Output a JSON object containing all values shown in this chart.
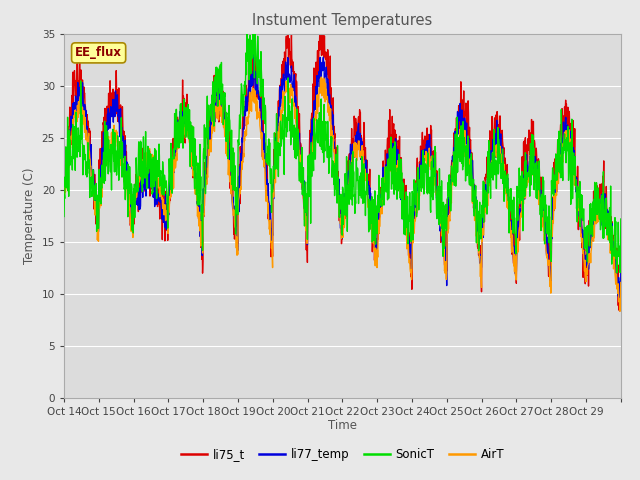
{
  "title": "Instument Temperatures",
  "ylabel": "Temperature (C)",
  "xlabel": "Time",
  "annotation_label": "EE_flux",
  "xtick_labels": [
    "Oct 14",
    "Oct 15",
    "Oct 16",
    "Oct 17",
    "Oct 18",
    "Oct 19",
    "Oct 20",
    "Oct 21",
    "Oct 22",
    "Oct 23",
    "Oct 24",
    "Oct 25",
    "Oct 26",
    "Oct 27",
    "Oct 28",
    "Oct 29"
  ],
  "ylim": [
    0,
    35
  ],
  "yticks": [
    0,
    5,
    10,
    15,
    20,
    25,
    30,
    35
  ],
  "colors": {
    "li75_t": "#dd0000",
    "li77_temp": "#0000dd",
    "SonicT": "#00dd00",
    "AirT": "#ff9900"
  },
  "background_color": "#e8e8e8",
  "plot_bg_color": "#dcdcdc",
  "annotation_bg": "#ffff99",
  "annotation_border": "#aa8800",
  "title_color": "#555555",
  "grid_color": "#ffffff",
  "line_width": 1.0,
  "figsize": [
    6.4,
    4.8
  ],
  "dpi": 100
}
